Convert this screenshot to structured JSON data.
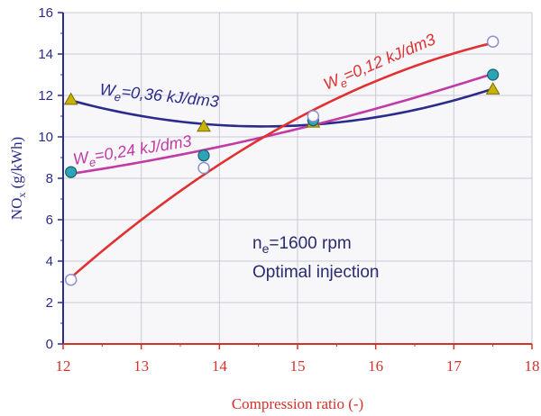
{
  "chart_data": {
    "type": "line",
    "xlabel": "Compression ratio (-)",
    "ylabel": "NOx (g/kWh)",
    "xlim": [
      12,
      18
    ],
    "ylim": [
      0,
      16
    ],
    "xticks": [
      "12",
      "13",
      "14",
      "15",
      "16",
      "17",
      "18"
    ],
    "yticks": [
      "0",
      "2",
      "4",
      "6",
      "8",
      "10",
      "12",
      "14",
      "16"
    ],
    "grid": true,
    "annotations": [
      {
        "text": "ne=1600 rpm"
      },
      {
        "text": "Optimal injection"
      }
    ],
    "series": [
      {
        "name": "We=0,36 kJ/dm3",
        "color": "#2b2b8c",
        "marker": "triangle",
        "marker_color": "#c8b400",
        "x": [
          12.1,
          13.8,
          15.2,
          17.5
        ],
        "y": [
          11.8,
          10.5,
          10.7,
          12.3
        ]
      },
      {
        "name": "We=0,24 kJ/dm3",
        "color": "#c23aa6",
        "marker": "filled-circle",
        "marker_color": "#2aa5b8",
        "x": [
          12.1,
          13.8,
          15.2,
          17.5
        ],
        "y": [
          8.3,
          9.1,
          10.8,
          13.0
        ]
      },
      {
        "name": "We=0,12 kJ/dm3",
        "color": "#e03030",
        "marker": "open-circle",
        "marker_color": "#8f8fd6",
        "x": [
          12.1,
          13.8,
          15.2,
          17.5
        ],
        "y": [
          3.1,
          8.5,
          11.0,
          14.6
        ]
      }
    ]
  }
}
